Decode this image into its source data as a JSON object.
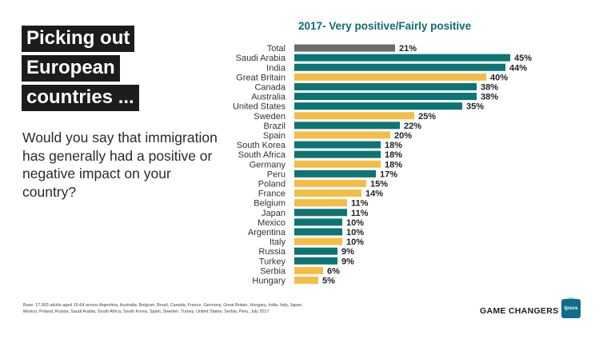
{
  "title_lines": [
    "Picking out",
    "European",
    "countries ..."
  ],
  "question": "Would you say that immigration has generally had a positive or negative impact on your country?",
  "footnote": "Base: 17,903 adults aged 16-64 across Argentina, Australia, Belgium, Brazil, Canada, France, Germany, Great Britain, Hungary, India, Italy, Japan, Mexico, Poland, Russia, Saudi Arabia, South Africa, South Korea, Spain, Sweden, Turkey, United States, Serbia, Peru, July 2017",
  "brand": "GAME CHANGERS",
  "logo_text": "Ipsos",
  "colors": {
    "teal": "#0e7474",
    "gold": "#f3bd48",
    "total": "#6b6b6b",
    "title_teal": "#0e6d6f"
  },
  "chart_data": {
    "type": "bar",
    "orientation": "horizontal",
    "title": "2017- Very positive/Fairly positive",
    "xlim": [
      0,
      50
    ],
    "value_suffix": "%",
    "categories": [
      "Total",
      "Saudi Arabia",
      "India",
      "Great Britain",
      "Canada",
      "Australia",
      "United States",
      "Sweden",
      "Brazil",
      "Spain",
      "South Korea",
      "South Africa",
      "Germany",
      "Peru",
      "Poland",
      "France",
      "Belgium",
      "Japan",
      "Mexico",
      "Argentina",
      "Italy",
      "Russia",
      "Turkey",
      "Serbia",
      "Hungary"
    ],
    "values": [
      21,
      45,
      44,
      40,
      38,
      38,
      35,
      25,
      22,
      20,
      18,
      18,
      18,
      17,
      15,
      14,
      11,
      11,
      10,
      10,
      10,
      9,
      9,
      6,
      5
    ],
    "groups": [
      "total",
      "teal",
      "teal",
      "gold",
      "teal",
      "teal",
      "teal",
      "gold",
      "teal",
      "gold",
      "teal",
      "teal",
      "gold",
      "teal",
      "gold",
      "gold",
      "gold",
      "teal",
      "teal",
      "teal",
      "gold",
      "teal",
      "teal",
      "gold",
      "gold"
    ],
    "value_labels": [
      "21%",
      "45%",
      "44%",
      "40%",
      "38%",
      "38%",
      "35%",
      "25%",
      "22%",
      "20%",
      "18%",
      "18%",
      "18%",
      "17%",
      "15%",
      "14%",
      "11%",
      "11%",
      "10%",
      "10%",
      "10%",
      "9%",
      "9%",
      "6%",
      "5%"
    ]
  }
}
